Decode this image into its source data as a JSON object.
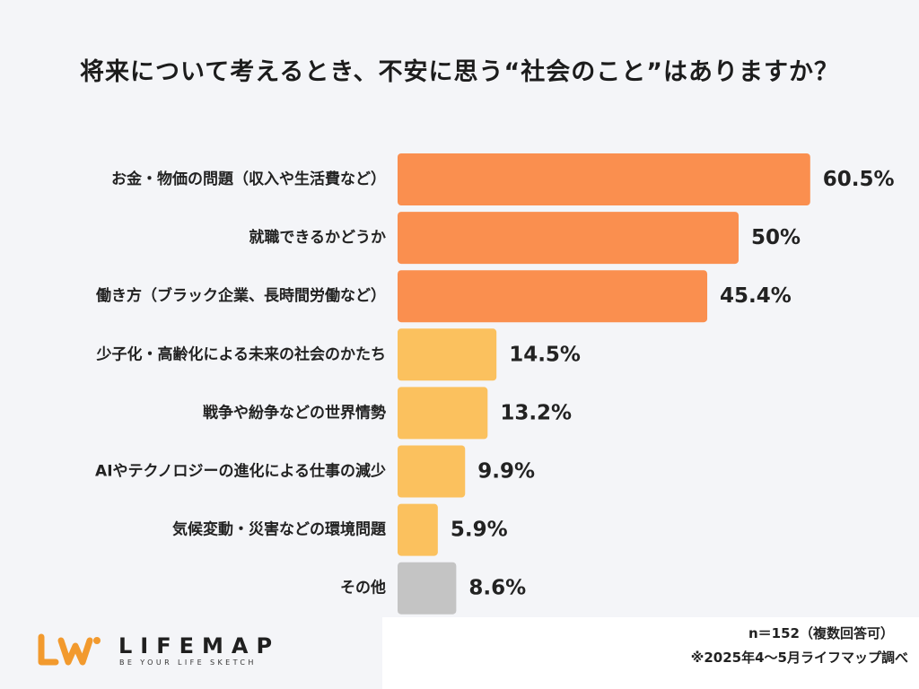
{
  "title": "将来について考えるとき、不安に思う“社会のこと”はありますか？",
  "notes": {
    "sample": "n＝152（複数回答可）",
    "source": "※2025年4～5月ライフマップ調べ"
  },
  "logo": {
    "name": "LIFEMAP",
    "tagline": "BE YOUR LIFE SKETCH"
  },
  "colors": {
    "top_tier": "#fa8f4f",
    "mid_tier": "#fbc15e",
    "other": "#c4c4c4",
    "logo_orange": "#f29a2e"
  },
  "chart_data": {
    "type": "bar",
    "orientation": "horizontal",
    "categories": [
      "お金・物価の問題（収入や生活費など）",
      "就職できるかどうか",
      "働き方（ブラック企業、長時間労働など）",
      "少子化・高齢化による未来の社会のかたち",
      "戦争や紛争などの世界情勢",
      "AIやテクノロジーの進化による仕事の減少",
      "気候変動・災害などの環境問題",
      "その他"
    ],
    "values": [
      60.5,
      50,
      45.4,
      14.5,
      13.2,
      9.9,
      5.9,
      8.6
    ],
    "value_labels": [
      "60.5%",
      "50%",
      "45.4%",
      "14.5%",
      "13.2%",
      "9.9%",
      "5.9%",
      "8.6%"
    ],
    "bar_colors": [
      "#fa8f4f",
      "#fa8f4f",
      "#fa8f4f",
      "#fbc15e",
      "#fbc15e",
      "#fbc15e",
      "#fbc15e",
      "#c4c4c4"
    ],
    "unit": "%",
    "grid": false,
    "legend": "none"
  }
}
